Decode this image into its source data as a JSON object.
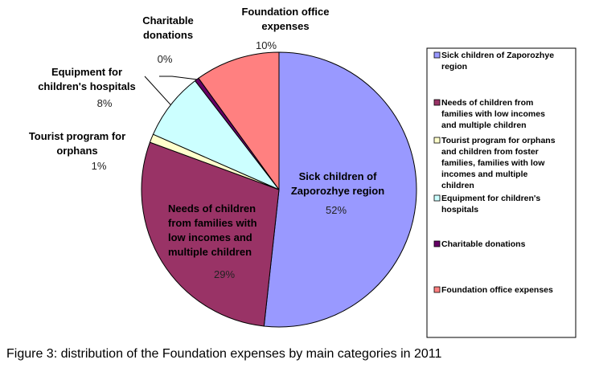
{
  "chart_data": {
    "type": "pie",
    "title": "",
    "categories": [
      "Sick children of Zaporozhye region",
      "Needs of children from families with low incomes and multiple children",
      "Tourist program for orphans and children from foster families, families with low incomes and multiple children",
      "Equipment for children's hospitals",
      "Charitable donations",
      "Foundation office expenses"
    ],
    "values": [
      52,
      29,
      1,
      8,
      0.5,
      10
    ],
    "value_labels": [
      "52%",
      "29%",
      "1%",
      "8%",
      "0%",
      "10%"
    ],
    "slice_labels": [
      [
        "Sick children of",
        "Zaporozhye region"
      ],
      [
        "Needs of children",
        "from families with",
        "low incomes and",
        "multiple children"
      ],
      [
        "Tourist program for",
        "orphans"
      ],
      [
        "Equipment for",
        "children's hospitals"
      ],
      [
        "Charitable",
        "donations"
      ],
      [
        "Foundation office",
        "expenses"
      ]
    ],
    "legend_lines": [
      [
        "Sick children of Zaporozhye",
        "region"
      ],
      [
        "Needs of children from",
        "families with low incomes",
        "and multiple children"
      ],
      [
        "Tourist program for orphans",
        "and children from foster",
        "families, families with low",
        "incomes and multiple",
        "children"
      ],
      [
        "Equipment for children's",
        "hospitals"
      ],
      [
        "Charitable donations"
      ],
      [
        "Foundation office expenses"
      ]
    ],
    "colors": [
      "#9999ff",
      "#993366",
      "#ffffcc",
      "#ccffff",
      "#660066",
      "#ff8080"
    ],
    "legend_position": "right"
  },
  "caption": "Figure 3: distribution of the Foundation expenses by main categories in 2011"
}
